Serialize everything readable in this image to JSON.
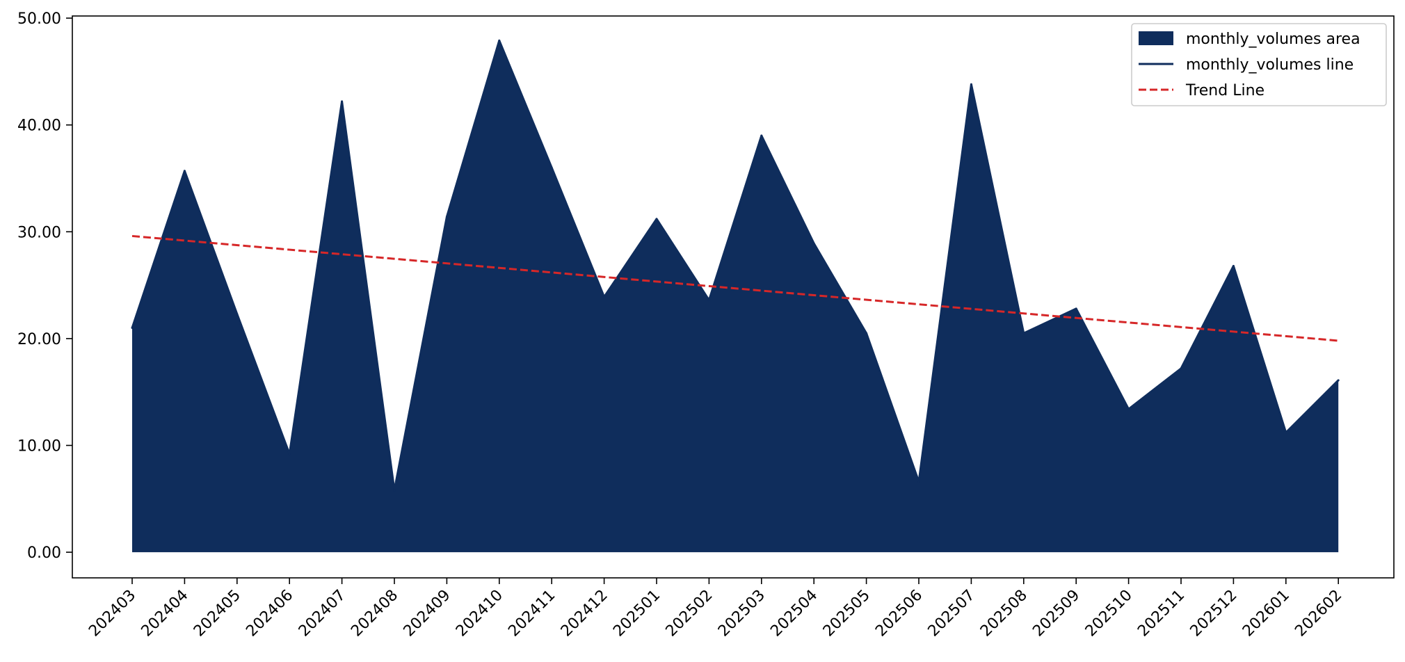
{
  "chart_data": {
    "type": "area",
    "categories": [
      "202403",
      "202404",
      "202405",
      "202406",
      "202407",
      "202408",
      "202409",
      "202410",
      "202411",
      "202412",
      "202501",
      "202502",
      "202503",
      "202504",
      "202505",
      "202506",
      "202507",
      "202508",
      "202509",
      "202510",
      "202511",
      "202512",
      "202601",
      "202602"
    ],
    "series": [
      {
        "name": "monthly_volumes",
        "values": [
          21.0,
          35.7,
          22.3,
          9.2,
          42.2,
          5.8,
          31.4,
          47.9,
          36.0,
          23.9,
          31.2,
          23.6,
          39.0,
          28.9,
          20.5,
          6.6,
          43.8,
          20.5,
          22.8,
          13.4,
          17.2,
          26.8,
          11.2,
          16.1
        ]
      }
    ],
    "trend": {
      "name": "Trend Line",
      "start": 29.6,
      "end": 19.8
    },
    "ylim": [
      -2.4,
      50.2
    ],
    "yticks": [
      0,
      10,
      20,
      30,
      40,
      50
    ],
    "ytick_labels": [
      "0.00",
      "10.00",
      "20.00",
      "30.00",
      "40.00",
      "50.00"
    ],
    "legend": {
      "placement": "top-right",
      "entries": [
        {
          "label": "monthly_volumes area",
          "kind": "patch"
        },
        {
          "label": "monthly_volumes line",
          "kind": "line"
        },
        {
          "label": "Trend Line",
          "kind": "dashed"
        }
      ]
    },
    "colors": {
      "area": "#0f2d5c",
      "line": "#0f2d5c",
      "trend": "#d62728"
    },
    "grid": false
  }
}
